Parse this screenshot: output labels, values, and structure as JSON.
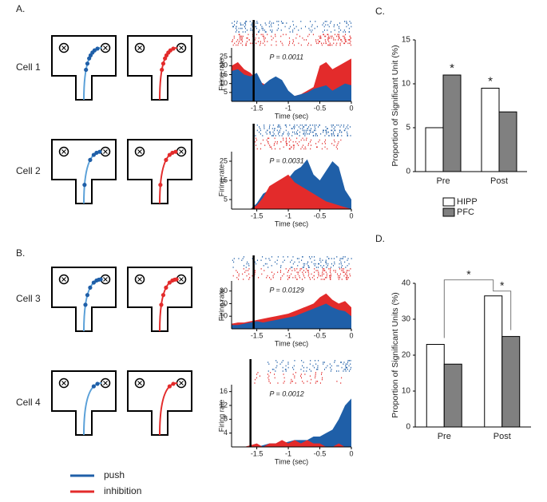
{
  "panels": [
    "A.",
    "B."
  ],
  "chart_data": [
    {
      "type": "area",
      "label": "Cell 1",
      "annotation": "P = 0.0011",
      "ylabel": "Firing rate",
      "xlabel": "Time (sec)",
      "event": -1.55,
      "xlim": [
        -1.9,
        0
      ],
      "xticks": [
        -1.5,
        -1,
        -0.5,
        0
      ],
      "ylim": [
        0,
        30
      ],
      "yticks": [
        5,
        10,
        15,
        20,
        25
      ],
      "x": [
        -1.9,
        -1.8,
        -1.7,
        -1.6,
        -1.5,
        -1.4,
        -1.3,
        -1.2,
        -1.1,
        -1.0,
        -0.9,
        -0.8,
        -0.7,
        -0.6,
        -0.5,
        -0.4,
        -0.3,
        -0.2,
        -0.1,
        0
      ],
      "series": [
        {
          "name": "inhibition",
          "color": "#e32b2b",
          "values": [
            20,
            22,
            18,
            16,
            12,
            10,
            8,
            6,
            5,
            3,
            3,
            4,
            6,
            8,
            20,
            22,
            18,
            20,
            22,
            24
          ]
        },
        {
          "name": "push",
          "color": "#1f5fa8",
          "values": [
            17,
            18,
            15,
            14,
            16,
            9,
            12,
            14,
            12,
            6,
            3,
            4,
            5,
            7,
            8,
            9,
            6,
            8,
            10,
            9
          ]
        }
      ]
    },
    {
      "type": "area",
      "label": "Cell 2",
      "annotation": "P = 0.0031",
      "ylabel": "Firing rate",
      "xlabel": "Time (sec)",
      "event": -1.55,
      "xlim": [
        -1.9,
        0
      ],
      "xticks": [
        -1.5,
        -1,
        -0.5,
        0
      ],
      "ylim": [
        0,
        30
      ],
      "yticks": [
        5,
        15,
        25
      ],
      "x": [
        -1.9,
        -1.8,
        -1.7,
        -1.6,
        -1.5,
        -1.4,
        -1.3,
        -1.2,
        -1.1,
        -1.0,
        -0.9,
        -0.8,
        -0.7,
        -0.6,
        -0.5,
        -0.4,
        -0.3,
        -0.2,
        -0.1,
        0
      ],
      "series": [
        {
          "name": "push",
          "color": "#1f5fa8",
          "values": [
            0,
            0,
            0,
            0,
            3,
            8,
            10,
            12,
            14,
            16,
            20,
            22,
            26,
            18,
            15,
            20,
            25,
            22,
            10,
            5
          ]
        },
        {
          "name": "inhibition",
          "color": "#e32b2b",
          "values": [
            0,
            0,
            0,
            0,
            2,
            6,
            12,
            14,
            16,
            18,
            14,
            12,
            10,
            8,
            6,
            4,
            3,
            2,
            1,
            0
          ]
        }
      ]
    },
    {
      "type": "area",
      "label": "Cell 3",
      "annotation": "P = 0.0129",
      "ylabel": "Firing rate",
      "xlabel": "Time (sec)",
      "event": -1.55,
      "xlim": [
        -1.9,
        0
      ],
      "xticks": [
        -1.5,
        -1,
        -0.5,
        0
      ],
      "ylim": [
        0,
        38
      ],
      "yticks": [
        10,
        20,
        30
      ],
      "x": [
        -1.9,
        -1.8,
        -1.7,
        -1.6,
        -1.5,
        -1.4,
        -1.3,
        -1.2,
        -1.1,
        -1.0,
        -0.9,
        -0.8,
        -0.7,
        -0.6,
        -0.5,
        -0.4,
        -0.3,
        -0.2,
        -0.1,
        0
      ],
      "series": [
        {
          "name": "inhibition",
          "color": "#e32b2b",
          "values": [
            4,
            5,
            5,
            6,
            7,
            8,
            9,
            10,
            11,
            12,
            14,
            16,
            18,
            20,
            25,
            28,
            23,
            20,
            22,
            17
          ]
        },
        {
          "name": "push",
          "color": "#1f5fa8",
          "values": [
            3,
            3,
            4,
            5,
            6,
            5,
            6,
            7,
            8,
            9,
            10,
            12,
            14,
            16,
            18,
            20,
            17,
            15,
            14,
            10
          ]
        }
      ]
    },
    {
      "type": "area",
      "label": "Cell 4",
      "annotation": "P = 0.0012",
      "ylabel": "Firing rate",
      "xlabel": "Time (sec)",
      "event": -1.6,
      "xlim": [
        -1.9,
        0
      ],
      "xticks": [
        -1.5,
        -1,
        -0.5,
        0
      ],
      "ylim": [
        0,
        18
      ],
      "yticks": [
        4,
        8,
        12,
        16
      ],
      "x": [
        -1.9,
        -1.8,
        -1.7,
        -1.6,
        -1.5,
        -1.4,
        -1.3,
        -1.2,
        -1.1,
        -1.0,
        -0.9,
        -0.8,
        -0.7,
        -0.6,
        -0.5,
        -0.4,
        -0.3,
        -0.2,
        -0.1,
        0
      ],
      "series": [
        {
          "name": "push",
          "color": "#1f5fa8",
          "values": [
            0,
            0,
            0,
            0,
            0,
            0.5,
            1,
            1,
            1,
            1.5,
            2,
            2,
            2,
            3,
            3,
            4,
            5,
            8,
            12,
            14
          ]
        },
        {
          "name": "inhibition",
          "color": "#e32b2b",
          "values": [
            0,
            0,
            0,
            0.5,
            1,
            0,
            1,
            1,
            2,
            1,
            2,
            1,
            2,
            1,
            1,
            0,
            0,
            1,
            0,
            0
          ]
        }
      ]
    },
    {
      "type": "bar",
      "title": "C.",
      "ylabel": "Proportion of Significant Unit (%)",
      "categories": [
        "Pre",
        "Post"
      ],
      "series": [
        {
          "name": "HIPP",
          "color": "#ffffff",
          "values": [
            5,
            9.5
          ]
        },
        {
          "name": "PFC",
          "color": "#808080",
          "values": [
            11,
            6.8
          ]
        }
      ],
      "ylim": [
        0,
        15
      ],
      "yticks": [
        0,
        5,
        10,
        15
      ],
      "legend": "bottom",
      "significance": "bars",
      "annotations": [
        "*",
        "*"
      ]
    },
    {
      "type": "bar",
      "title": "D.",
      "ylabel": "Proportion of Significant Units (%)",
      "categories": [
        "Pre",
        "Post"
      ],
      "series": [
        {
          "name": "HIPP",
          "color": "#ffffff",
          "values": [
            23,
            36.5
          ]
        },
        {
          "name": "PFC",
          "color": "#808080",
          "values": [
            17.5,
            25.2
          ]
        }
      ],
      "ylim": [
        0,
        40
      ],
      "yticks": [
        0,
        10,
        20,
        30,
        40
      ],
      "significance": "brackets",
      "annotations": [
        "*",
        "*"
      ]
    }
  ]
}
